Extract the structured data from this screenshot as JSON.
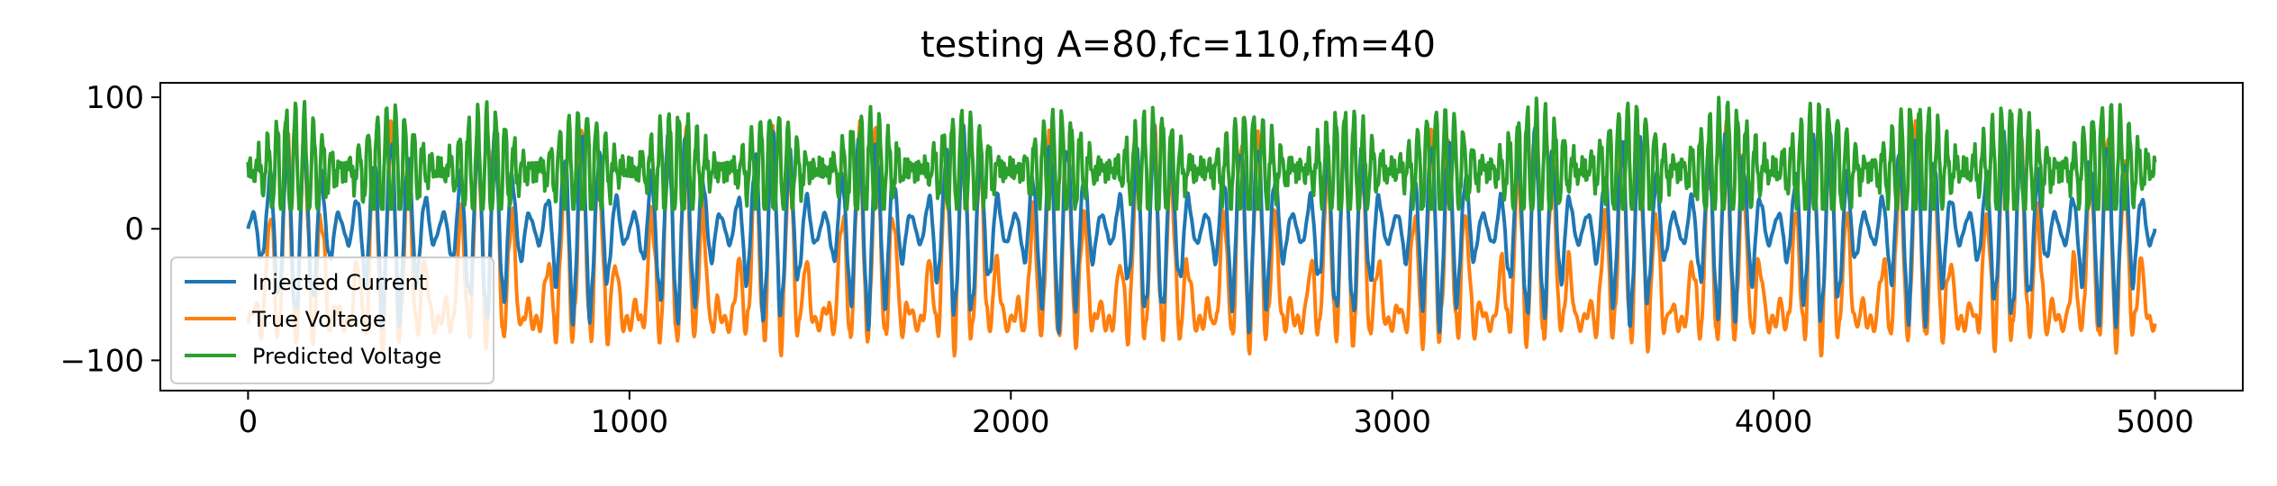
{
  "chart_data": {
    "type": "line",
    "title": "testing A=80,fc=110,fm=40",
    "xlabel": "",
    "ylabel": "",
    "xlim": [
      -230,
      5230
    ],
    "ylim": [
      -123,
      111
    ],
    "x_ticks": [
      0,
      1000,
      2000,
      3000,
      4000,
      5000
    ],
    "y_ticks": [
      100,
      0,
      -100
    ],
    "x_tick_labels": [
      "0",
      "1000",
      "2000",
      "3000",
      "4000",
      "5000"
    ],
    "y_tick_labels": [
      "100",
      "0",
      "−100"
    ],
    "grid": false,
    "legend_position": "lower-left",
    "x": [
      0,
      5000
    ],
    "series": [
      {
        "name": "Injected Current",
        "color": "#1f77b4",
        "description_range": [
          -80,
          80
        ],
        "values_range": [
          -80,
          80
        ]
      },
      {
        "name": "True Voltage",
        "color": "#ff7f0e",
        "values_range": [
          -110,
          80
        ]
      },
      {
        "name": "Predicted Voltage",
        "color": "#2ca02c",
        "values_range": [
          20,
          100
        ]
      }
    ]
  }
}
